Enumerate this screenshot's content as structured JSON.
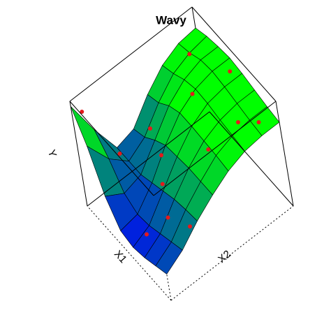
{
  "chart_data": {
    "type": "surface",
    "title": "Wavy",
    "xlabel": "X1",
    "ylabel": "X2",
    "zlabel": "Y",
    "xlim": [
      0,
      1
    ],
    "ylim": [
      0,
      1
    ],
    "zlim": [
      0,
      1
    ],
    "colors": [
      "#0000ff",
      "#00ff00"
    ],
    "point_color": "#e41a1c",
    "z": [
      [
        0.25,
        0.35,
        0.5,
        0.62,
        0.72,
        0.78,
        0.8,
        0.8
      ],
      [
        0.2,
        0.3,
        0.48,
        0.62,
        0.74,
        0.8,
        0.82,
        0.82
      ],
      [
        0.15,
        0.25,
        0.45,
        0.62,
        0.75,
        0.82,
        0.85,
        0.85
      ],
      [
        0.12,
        0.2,
        0.4,
        0.6,
        0.76,
        0.85,
        0.88,
        0.88
      ],
      [
        0.15,
        0.18,
        0.35,
        0.58,
        0.76,
        0.86,
        0.9,
        0.9
      ],
      [
        0.35,
        0.25,
        0.3,
        0.5,
        0.7,
        0.82,
        0.88,
        0.88
      ],
      [
        0.7,
        0.45,
        0.3,
        0.4,
        0.6,
        0.75,
        0.82,
        0.85
      ],
      [
        0.95,
        0.6,
        0.3,
        0.35,
        0.55,
        0.7,
        0.78,
        0.8
      ]
    ],
    "points": {
      "x1": [
        0.95,
        0.8,
        0.55,
        0.3,
        0.1,
        0.6,
        0.4,
        0.2,
        0.9,
        0.7,
        0.15,
        0.5,
        0.85,
        0.35
      ],
      "x2": [
        0.05,
        0.2,
        0.35,
        0.6,
        0.9,
        0.7,
        0.1,
        0.8,
        0.5,
        0.45,
        0.3,
        0.95,
        0.85,
        0.25
      ],
      "y": [
        0.9,
        0.5,
        0.3,
        0.63,
        0.8,
        0.8,
        0.18,
        0.8,
        0.38,
        0.35,
        0.3,
        0.88,
        0.82,
        0.25
      ]
    }
  }
}
